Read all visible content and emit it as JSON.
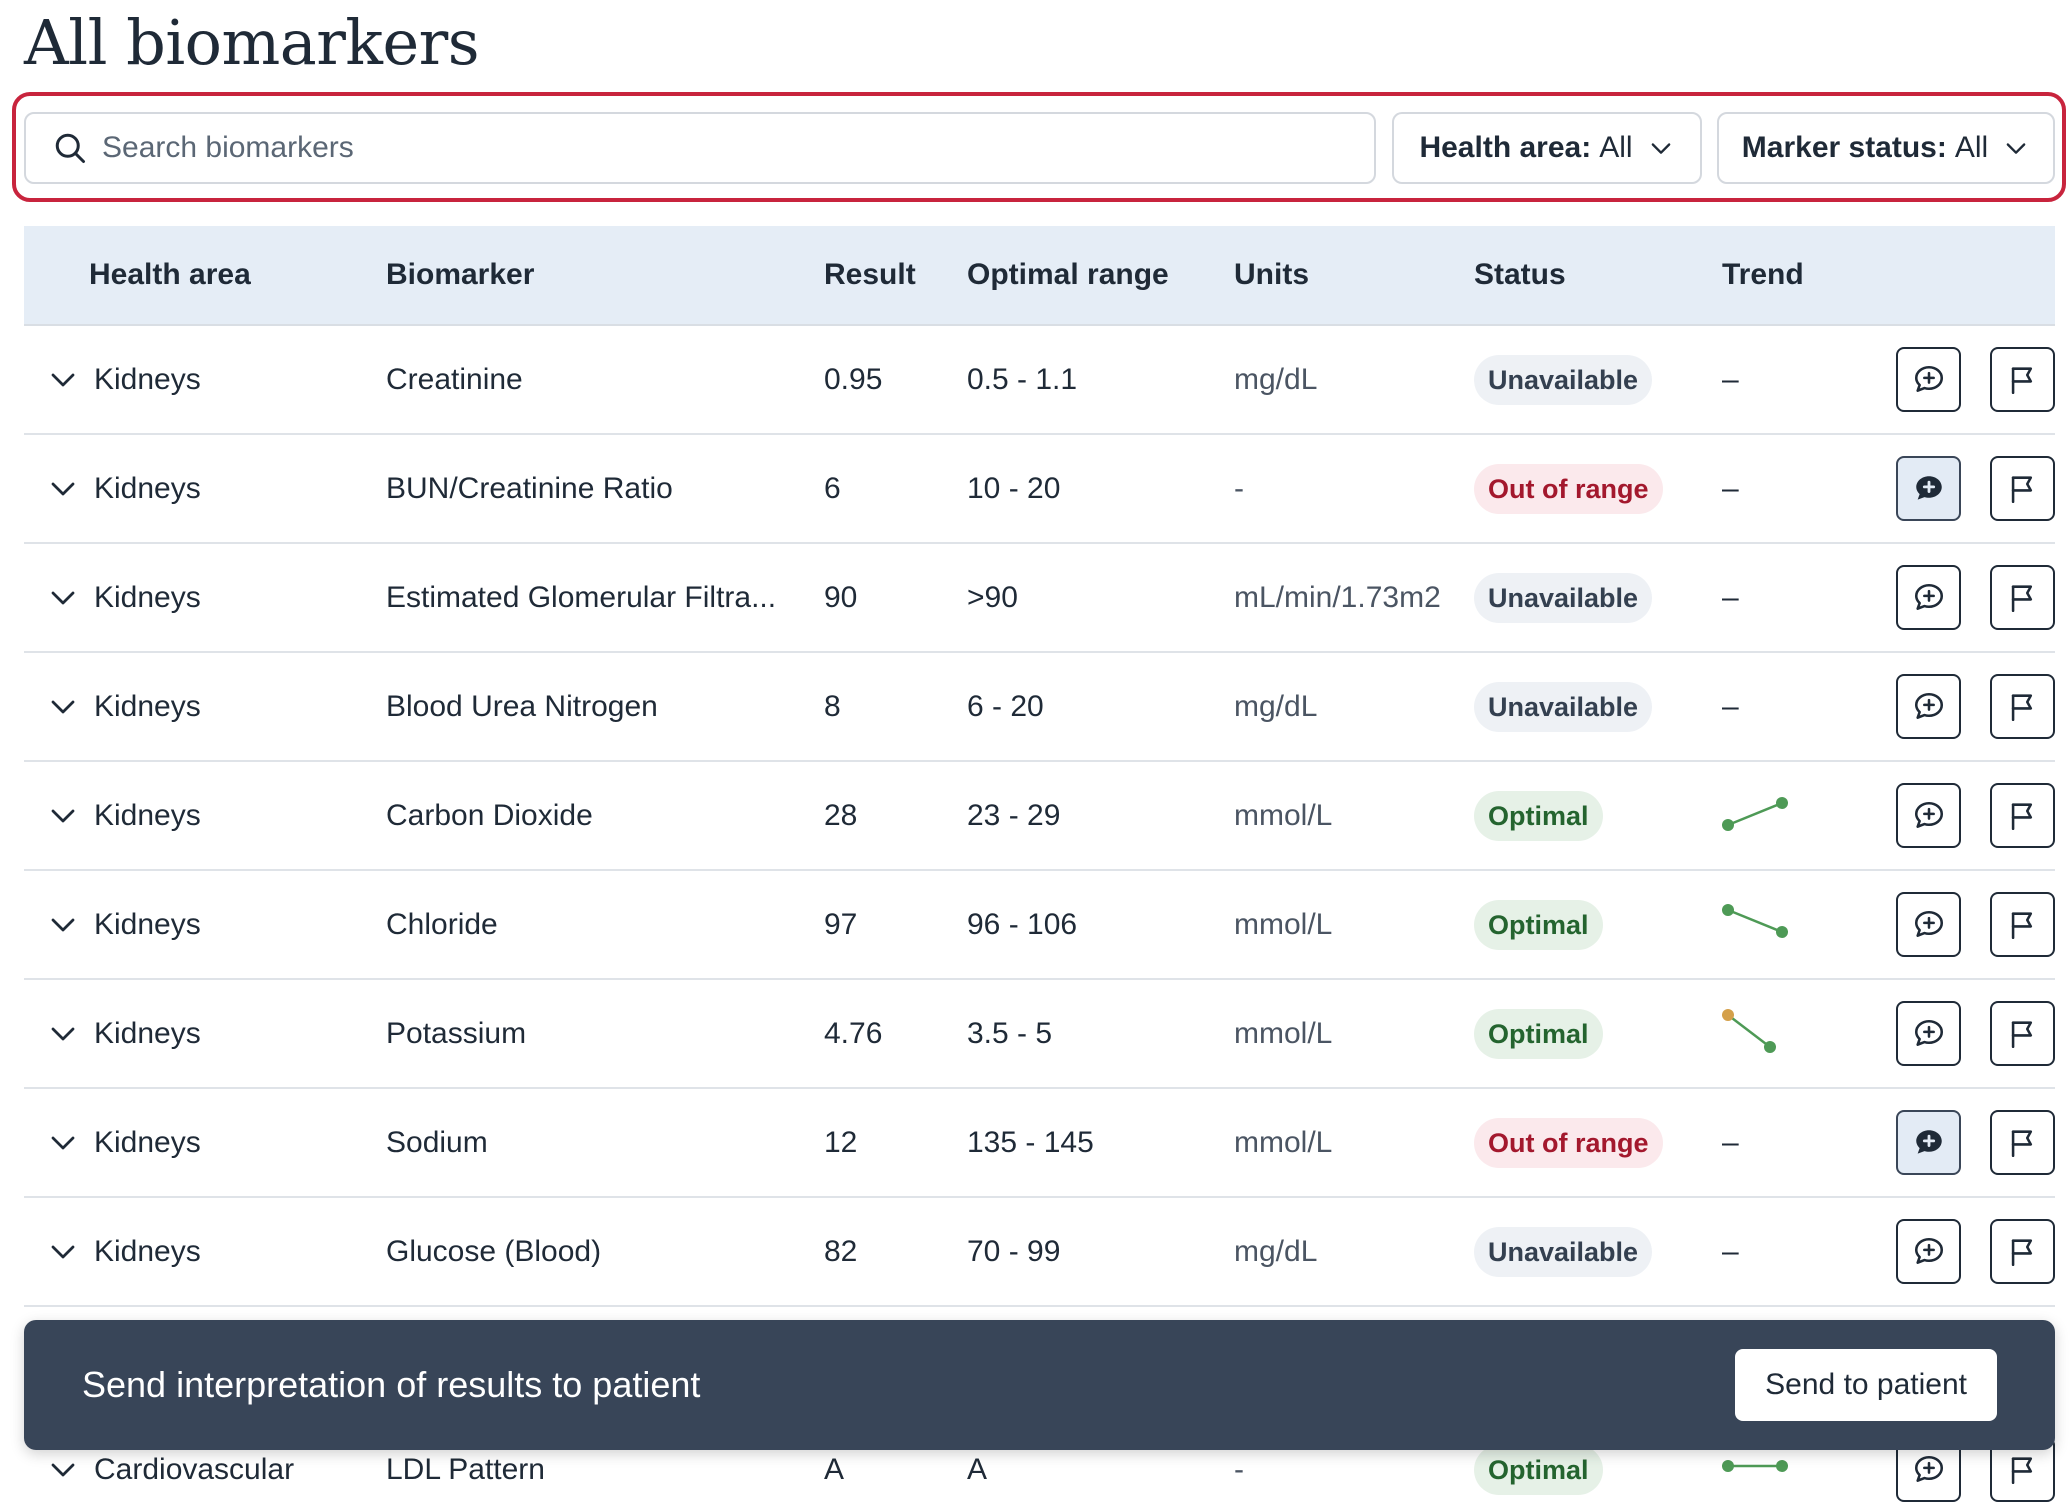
{
  "page": {
    "title": "All biomarkers"
  },
  "search": {
    "placeholder": "Search biomarkers",
    "value": ""
  },
  "filters": {
    "health_area": {
      "label": "Health area:",
      "value": "All"
    },
    "marker_status": {
      "label": "Marker status:",
      "value": "All"
    }
  },
  "table": {
    "headers": {
      "health_area": "Health area",
      "biomarker": "Biomarker",
      "result": "Result",
      "optimal_range": "Optimal range",
      "units": "Units",
      "status": "Status",
      "trend": "Trend"
    },
    "rows": [
      {
        "area": "Kidneys",
        "biomarker": "Creatinine",
        "result": "0.95",
        "range": "0.5 - 1.1",
        "units": "mg/dL",
        "status": "Unavailable",
        "status_type": "unavailable",
        "trend": "–",
        "trend_shape": "none",
        "comment_active": false
      },
      {
        "area": "Kidneys",
        "biomarker": "BUN/Creatinine Ratio",
        "result": "6",
        "range": "10 - 20",
        "units": "-",
        "status": "Out of range",
        "status_type": "out",
        "trend": "–",
        "trend_shape": "none",
        "comment_active": true
      },
      {
        "area": "Kidneys",
        "biomarker": "Estimated Glomerular Filtra...",
        "result": "90",
        "range": ">90",
        "units": "mL/min/1.73m2",
        "status": "Unavailable",
        "status_type": "unavailable",
        "trend": "–",
        "trend_shape": "none",
        "comment_active": false
      },
      {
        "area": "Kidneys",
        "biomarker": "Blood Urea Nitrogen",
        "result": "8",
        "range": "6 - 20",
        "units": "mg/dL",
        "status": "Unavailable",
        "status_type": "unavailable",
        "trend": "–",
        "trend_shape": "none",
        "comment_active": false
      },
      {
        "area": "Kidneys",
        "biomarker": "Carbon Dioxide",
        "result": "28",
        "range": "23 - 29",
        "units": "mmol/L",
        "status": "Optimal",
        "status_type": "optimal",
        "trend": "",
        "trend_shape": "up",
        "comment_active": false
      },
      {
        "area": "Kidneys",
        "biomarker": "Chloride",
        "result": "97",
        "range": "96 - 106",
        "units": "mmol/L",
        "status": "Optimal",
        "status_type": "optimal",
        "trend": "",
        "trend_shape": "down",
        "comment_active": false
      },
      {
        "area": "Kidneys",
        "biomarker": "Potassium",
        "result": "4.76",
        "range": "3.5 - 5",
        "units": "mmol/L",
        "status": "Optimal",
        "status_type": "optimal",
        "trend": "",
        "trend_shape": "steep-down",
        "comment_active": false
      },
      {
        "area": "Kidneys",
        "biomarker": "Sodium",
        "result": "12",
        "range": "135 - 145",
        "units": "mmol/L",
        "status": "Out of range",
        "status_type": "out",
        "trend": "–",
        "trend_shape": "none",
        "comment_active": true
      },
      {
        "area": "Kidneys",
        "biomarker": "Glucose (Blood)",
        "result": "82",
        "range": "70 - 99",
        "units": "mg/dL",
        "status": "Unavailable",
        "status_type": "unavailable",
        "trend": "–",
        "trend_shape": "none",
        "comment_active": false
      },
      {
        "area": "",
        "biomarker": "",
        "result": "",
        "range": "",
        "units": "",
        "status": "",
        "status_type": "hidden",
        "trend": "",
        "trend_shape": "hidden",
        "comment_active": false
      },
      {
        "area": "Cardiovascular",
        "biomarker": "LDL Pattern",
        "result": "A",
        "range": "A",
        "units": "-",
        "status": "Optimal",
        "status_type": "optimal",
        "trend": "",
        "trend_shape": "flat",
        "comment_active": false
      }
    ]
  },
  "banner": {
    "text": "Send interpretation of results to patient",
    "button_label": "Send to patient"
  },
  "colors": {
    "accent_outline": "#c8243d",
    "trend_green": "#4e9a56",
    "trend_amber": "#d4a04a",
    "banner_bg": "#384558"
  },
  "icons": {
    "search": "search-icon",
    "chevron": "chevron-down-icon",
    "comment": "comment-plus-icon",
    "flag": "flag-icon"
  }
}
